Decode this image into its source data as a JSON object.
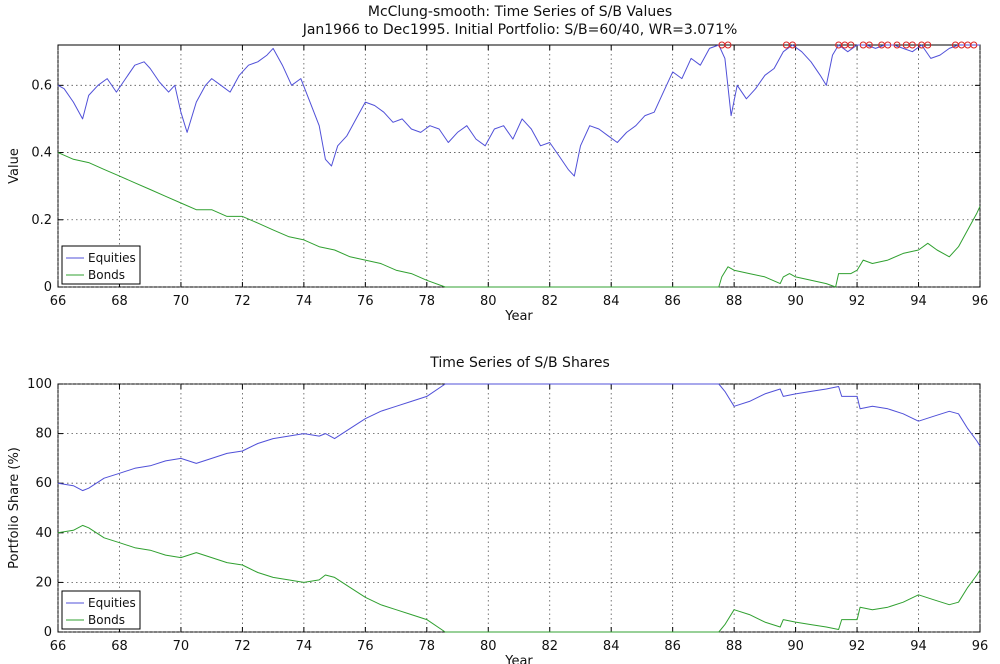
{
  "chart_data": [
    {
      "type": "line",
      "title": "McClung-smooth: Time Series of S/B Values",
      "subtitle": "Jan1966 to Dec1995. Initial Portfolio: S/B=60/40, WR=3.071%",
      "xlabel": "Year",
      "ylabel": "Value",
      "xlim": [
        66,
        96
      ],
      "ylim": [
        0,
        0.72
      ],
      "xticks": [
        "66",
        "68",
        "70",
        "72",
        "74",
        "76",
        "78",
        "80",
        "82",
        "84",
        "86",
        "88",
        "90",
        "92",
        "94",
        "96"
      ],
      "yticks": [
        "0",
        "0.2",
        "0.4",
        "0.6"
      ],
      "grid": true,
      "legend": "bottom-left",
      "colors": {
        "Equities": "#5050d8",
        "Bonds": "#30a030",
        "markers": "#dd2222"
      },
      "series": [
        {
          "name": "Equities",
          "x": [
            66.0,
            66.2,
            66.5,
            66.8,
            67.0,
            67.3,
            67.6,
            67.9,
            68.2,
            68.5,
            68.8,
            69.0,
            69.3,
            69.6,
            69.8,
            70.0,
            70.2,
            70.5,
            70.8,
            71.0,
            71.3,
            71.6,
            71.9,
            72.2,
            72.5,
            72.8,
            73.0,
            73.3,
            73.6,
            73.9,
            74.2,
            74.5,
            74.7,
            74.9,
            75.1,
            75.4,
            75.7,
            76.0,
            76.3,
            76.6,
            76.9,
            77.2,
            77.5,
            77.8,
            78.1,
            78.4,
            78.7,
            79.0,
            79.3,
            79.6,
            79.9,
            80.2,
            80.5,
            80.8,
            81.1,
            81.4,
            81.7,
            82.0,
            82.3,
            82.6,
            82.8,
            83.0,
            83.3,
            83.6,
            83.9,
            84.2,
            84.5,
            84.8,
            85.1,
            85.4,
            85.7,
            86.0,
            86.3,
            86.6,
            86.9,
            87.2,
            87.5,
            87.7,
            87.9,
            88.1,
            88.4,
            88.7,
            89.0,
            89.3,
            89.6,
            89.9,
            90.2,
            90.5,
            90.8,
            91.0,
            91.2,
            91.4,
            91.7,
            92.0,
            92.3,
            92.6,
            92.9,
            93.2,
            93.5,
            93.8,
            94.1,
            94.4,
            94.7,
            95.0,
            95.3,
            95.6,
            95.9,
            96.0
          ],
          "y": [
            0.6,
            0.59,
            0.55,
            0.5,
            0.57,
            0.6,
            0.62,
            0.58,
            0.62,
            0.66,
            0.67,
            0.65,
            0.61,
            0.58,
            0.6,
            0.52,
            0.46,
            0.55,
            0.6,
            0.62,
            0.6,
            0.58,
            0.63,
            0.66,
            0.67,
            0.69,
            0.71,
            0.66,
            0.6,
            0.62,
            0.55,
            0.48,
            0.38,
            0.36,
            0.42,
            0.45,
            0.5,
            0.55,
            0.54,
            0.52,
            0.49,
            0.5,
            0.47,
            0.46,
            0.48,
            0.47,
            0.43,
            0.46,
            0.48,
            0.44,
            0.42,
            0.47,
            0.48,
            0.44,
            0.5,
            0.47,
            0.42,
            0.43,
            0.39,
            0.35,
            0.33,
            0.42,
            0.48,
            0.47,
            0.45,
            0.43,
            0.46,
            0.48,
            0.51,
            0.52,
            0.58,
            0.64,
            0.62,
            0.68,
            0.66,
            0.71,
            0.72,
            0.68,
            0.51,
            0.6,
            0.56,
            0.59,
            0.63,
            0.65,
            0.7,
            0.72,
            0.7,
            0.67,
            0.63,
            0.6,
            0.69,
            0.72,
            0.7,
            0.72,
            0.72,
            0.71,
            0.72,
            0.72,
            0.71,
            0.7,
            0.72,
            0.68,
            0.69,
            0.71,
            0.72,
            0.72,
            0.72,
            0.72
          ]
        },
        {
          "name": "Bonds",
          "x": [
            66.0,
            66.5,
            67.0,
            67.5,
            68.0,
            68.5,
            69.0,
            69.5,
            70.0,
            70.5,
            71.0,
            71.5,
            72.0,
            72.5,
            73.0,
            73.5,
            74.0,
            74.5,
            75.0,
            75.5,
            76.0,
            76.5,
            77.0,
            77.5,
            78.0,
            78.6,
            79.0,
            80.0,
            81.0,
            82.0,
            83.0,
            84.0,
            85.0,
            86.0,
            87.0,
            87.5,
            87.6,
            87.8,
            88.0,
            88.5,
            89.0,
            89.5,
            89.6,
            89.8,
            90.0,
            90.5,
            91.0,
            91.3,
            91.4,
            91.8,
            92.0,
            92.2,
            92.5,
            93.0,
            93.5,
            94.0,
            94.3,
            94.6,
            95.0,
            95.3,
            95.6,
            95.9,
            96.0
          ],
          "y": [
            0.4,
            0.38,
            0.37,
            0.35,
            0.33,
            0.31,
            0.29,
            0.27,
            0.25,
            0.23,
            0.23,
            0.21,
            0.21,
            0.19,
            0.17,
            0.15,
            0.14,
            0.12,
            0.11,
            0.09,
            0.08,
            0.07,
            0.05,
            0.04,
            0.02,
            0.0,
            0.0,
            0.0,
            0.0,
            0.0,
            0.0,
            0.0,
            0.0,
            0.0,
            0.0,
            0.0,
            0.03,
            0.06,
            0.05,
            0.04,
            0.03,
            0.01,
            0.03,
            0.04,
            0.03,
            0.02,
            0.01,
            0.0,
            0.04,
            0.04,
            0.05,
            0.08,
            0.07,
            0.08,
            0.1,
            0.11,
            0.13,
            0.11,
            0.09,
            0.12,
            0.17,
            0.22,
            0.24
          ]
        }
      ],
      "marker_x": [
        87.6,
        87.8,
        89.7,
        89.9,
        91.4,
        91.6,
        91.8,
        92.2,
        92.4,
        92.8,
        93.0,
        93.3,
        93.6,
        93.8,
        94.1,
        94.3,
        95.2,
        95.4,
        95.6,
        95.8
      ]
    },
    {
      "type": "line",
      "title": "Time Series of S/B Shares",
      "xlabel": "Year",
      "ylabel": "Portfolio Share (%)",
      "xlim": [
        66,
        96
      ],
      "ylim": [
        0,
        100
      ],
      "xticks": [
        "66",
        "68",
        "70",
        "72",
        "74",
        "76",
        "78",
        "80",
        "82",
        "84",
        "86",
        "88",
        "90",
        "92",
        "94",
        "96"
      ],
      "yticks": [
        "0",
        "20",
        "40",
        "60",
        "80",
        "100"
      ],
      "grid": true,
      "legend": "bottom-left",
      "colors": {
        "Equities": "#5050d8",
        "Bonds": "#30a030"
      },
      "series": [
        {
          "name": "Equities",
          "x": [
            66.0,
            66.5,
            66.8,
            67.0,
            67.5,
            68.0,
            68.5,
            69.0,
            69.5,
            70.0,
            70.5,
            71.0,
            71.5,
            72.0,
            72.5,
            73.0,
            73.5,
            74.0,
            74.5,
            74.7,
            75.0,
            75.5,
            76.0,
            76.5,
            77.0,
            77.5,
            78.0,
            78.6,
            79.0,
            80.0,
            81.0,
            82.0,
            83.0,
            84.0,
            85.0,
            86.0,
            87.0,
            87.5,
            87.7,
            88.0,
            88.5,
            89.0,
            89.5,
            89.6,
            90.0,
            90.5,
            91.0,
            91.4,
            91.5,
            92.0,
            92.1,
            92.5,
            93.0,
            93.5,
            94.0,
            94.5,
            95.0,
            95.3,
            95.6,
            95.9,
            96.0
          ],
          "y": [
            60,
            59,
            57,
            58,
            62,
            64,
            66,
            67,
            69,
            70,
            68,
            70,
            72,
            73,
            76,
            78,
            79,
            80,
            79,
            80,
            78,
            82,
            86,
            89,
            91,
            93,
            95,
            100,
            100,
            100,
            100,
            100,
            100,
            100,
            100,
            100,
            100,
            100,
            97,
            91,
            93,
            96,
            98,
            95,
            96,
            97,
            98,
            99,
            95,
            95,
            90,
            91,
            90,
            88,
            85,
            87,
            89,
            88,
            82,
            77,
            75
          ]
        },
        {
          "name": "Bonds",
          "x": [
            66.0,
            66.5,
            66.8,
            67.0,
            67.5,
            68.0,
            68.5,
            69.0,
            69.5,
            70.0,
            70.5,
            71.0,
            71.5,
            72.0,
            72.5,
            73.0,
            73.5,
            74.0,
            74.5,
            74.7,
            75.0,
            75.5,
            76.0,
            76.5,
            77.0,
            77.5,
            78.0,
            78.6,
            79.0,
            80.0,
            81.0,
            82.0,
            83.0,
            84.0,
            85.0,
            86.0,
            87.0,
            87.5,
            87.7,
            88.0,
            88.5,
            89.0,
            89.5,
            89.6,
            90.0,
            90.5,
            91.0,
            91.4,
            91.5,
            92.0,
            92.1,
            92.5,
            93.0,
            93.5,
            94.0,
            94.5,
            95.0,
            95.3,
            95.6,
            95.9,
            96.0
          ],
          "y": [
            40,
            41,
            43,
            42,
            38,
            36,
            34,
            33,
            31,
            30,
            32,
            30,
            28,
            27,
            24,
            22,
            21,
            20,
            21,
            23,
            22,
            18,
            14,
            11,
            9,
            7,
            5,
            0,
            0,
            0,
            0,
            0,
            0,
            0,
            0,
            0,
            0,
            0,
            3,
            9,
            7,
            4,
            2,
            5,
            4,
            3,
            2,
            1,
            5,
            5,
            10,
            9,
            10,
            12,
            15,
            13,
            11,
            12,
            18,
            23,
            25
          ]
        }
      ]
    }
  ]
}
